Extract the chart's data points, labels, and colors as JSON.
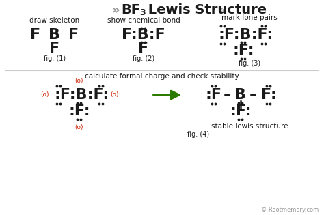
{
  "bg_color": "#ffffff",
  "text_color": "#1a1a1a",
  "red_color": "#cc2200",
  "green_color": "#2d7a00",
  "gray_color": "#999999",
  "dot_color": "#1a1a1a",
  "section1_label": "draw skeleton",
  "section2_label": "show chemical bond",
  "section3_label": "mark lone pairs",
  "section4_label": "calculate formal charge and check stability",
  "fig1_label": "fig. (1)",
  "fig2_label": "fig. (2)",
  "fig3_label": "fig. (3)",
  "fig4_label": "fig. (4)",
  "stable_label": "stable lewis structure",
  "copyright": "© Rootmemory.com"
}
